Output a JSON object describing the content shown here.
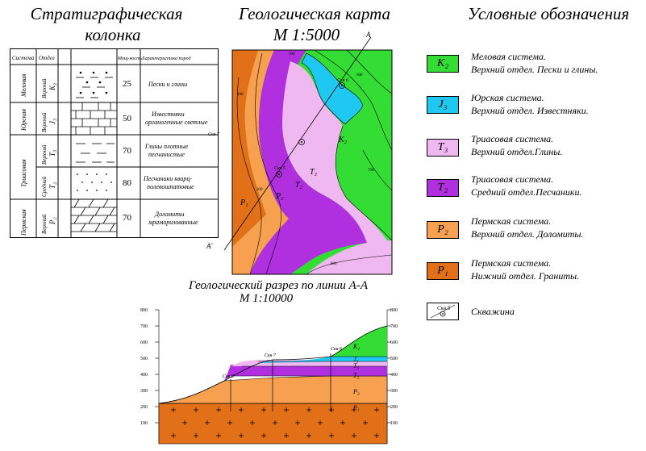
{
  "titles": {
    "column_line1": "Стратиграфическая",
    "column_line2": "колонка",
    "map_line1": "Геологическая карта",
    "map_scale": "М 1:5000",
    "legend": "Условные обозначения",
    "section_line1": "Геологический разрез по линии А-А",
    "section_scale": "М 1:10000"
  },
  "column_table": {
    "headers": [
      "Система",
      "Отдел",
      "",
      "Мощ-ность",
      "Характеристика пород"
    ],
    "rows": [
      {
        "system": "Меловая",
        "series": "Верхний",
        "index": "K₂",
        "thickness": "25",
        "desc1": "Пески и глины",
        "desc2": ""
      },
      {
        "system": "Юрская",
        "series": "Верхний",
        "index": "J₃",
        "thickness": "50",
        "desc1": "Известняки",
        "desc2": "органогенные светлые"
      },
      {
        "system": "Триасовая",
        "series": "Верхний",
        "index": "T₃",
        "thickness": "70",
        "desc1": "Глины плотные",
        "desc2": "песчанистые"
      },
      {
        "system": "",
        "series": "Средний",
        "index": "T₂",
        "thickness": "80",
        "desc1": "Песчаники кварц-",
        "desc2": "полевошпатовые"
      },
      {
        "system": "Пермская",
        "series": "Верхний",
        "index": "P₂",
        "thickness": "70",
        "desc1": "Доломиты",
        "desc2": "мраморизованные"
      }
    ]
  },
  "map_labels": {
    "line_end_a": "А",
    "line_end_a2": "А'",
    "well5": "Скв 5",
    "well6": "Скв 6",
    "well7": "Скв 7",
    "k2": "K₂",
    "t3": "T₃",
    "t2": "T₂",
    "p2": "P₂",
    "p1": "P₁",
    "contours": [
      "500",
      "600",
      "700",
      "400",
      "300",
      "800"
    ]
  },
  "section": {
    "y_ticks": [
      "800",
      "700",
      "600",
      "500",
      "400",
      "300",
      "200",
      "100"
    ],
    "wells": [
      "Скв 5",
      "Скв 7",
      "Скв 6"
    ],
    "layer_labels": [
      "K₂",
      "J₃",
      "T₃",
      "T₂",
      "P₂",
      "P₁"
    ]
  },
  "legend": [
    {
      "index": "K₂",
      "color": "#33dd33",
      "line1": "Меловая система.",
      "line2": "Верхний отдел. Пески и глины."
    },
    {
      "index": "J₃",
      "color": "#1ec8f0",
      "line1": "Юрская система.",
      "line2": "Верхний отдел. Известняки."
    },
    {
      "index": "T₃",
      "color": "#f0b8f0",
      "line1": "Триасовая система.",
      "line2": "Верхний отдел.Глины."
    },
    {
      "index": "T₂",
      "color": "#b030e0",
      "line1": "Триасовая система.",
      "line2": "Средний отдел.Песчаники."
    },
    {
      "index": "P₂",
      "color": "#f7a050",
      "line1": "Пермская система.",
      "line2": "Верхний отдел. Доломиты."
    },
    {
      "index": "P₁",
      "color": "#e27018",
      "line1": "Пермская система.",
      "line2": "Нижний отдел. Граниты."
    },
    {
      "index": "Скв 5",
      "color": "#ffffff",
      "line1": "Скважина",
      "line2": ""
    }
  ]
}
